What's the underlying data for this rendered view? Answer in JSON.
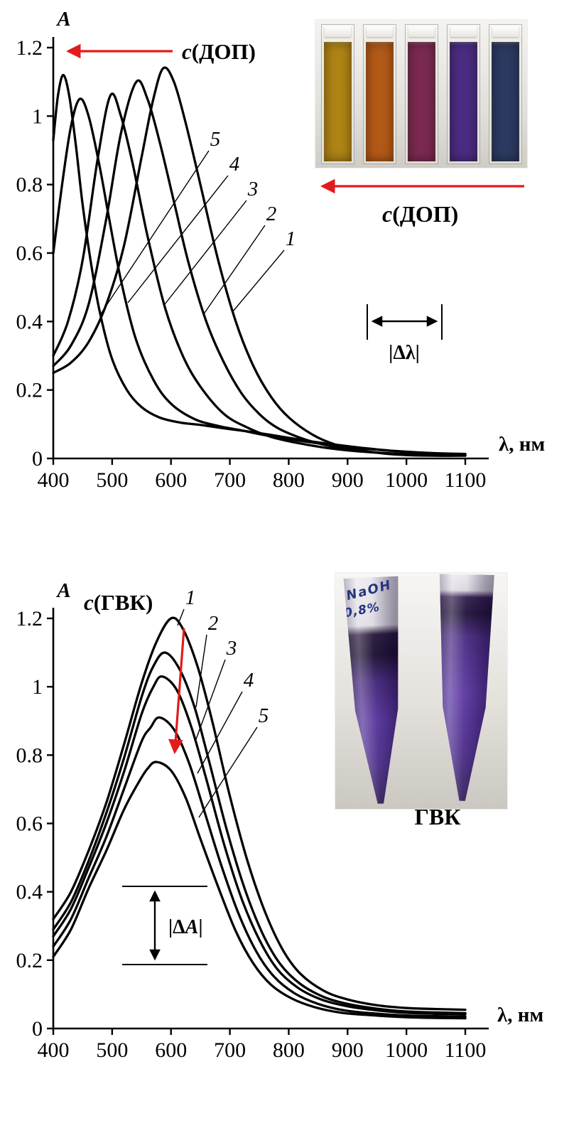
{
  "page": {
    "background": "#ffffff",
    "curve_color": "#000000",
    "arrow_color": "#e21b1b"
  },
  "insets": {
    "cuvettes": {
      "arrow_label": "c(ДОП)",
      "colors": [
        "#b08415",
        "#b45a17",
        "#7c2a50",
        "#4b2c82",
        "#2d3a61"
      ]
    },
    "tubes": {
      "caption": "ГВК",
      "tube_text": [
        "NaOH",
        "0,8%"
      ]
    }
  },
  "chart_data": [
    {
      "type": "line",
      "title": "",
      "xlabel": "λ, нм",
      "ylabel": "A",
      "xlim": [
        400,
        1100
      ],
      "ylim": [
        0,
        1.2
      ],
      "xticks": [
        400,
        500,
        600,
        700,
        800,
        900,
        1000,
        1100
      ],
      "yticks": [
        0,
        0.2,
        0.4,
        0.6,
        0.8,
        1,
        1.2
      ],
      "grid": false,
      "legend_position": "none",
      "annotations": {
        "direction_arrow_label": "c(ДОП)",
        "delta_label": "|Δλ|"
      },
      "series": [
        {
          "name": "1",
          "x": [
            400,
            430,
            460,
            490,
            520,
            550,
            570,
            587,
            605,
            625,
            650,
            680,
            710,
            740,
            770,
            800,
            840,
            880,
            920,
            960,
            1000,
            1050,
            1100
          ],
          "y": [
            0.25,
            0.28,
            0.34,
            0.45,
            0.62,
            0.88,
            1.05,
            1.14,
            1.1,
            0.98,
            0.8,
            0.58,
            0.4,
            0.27,
            0.18,
            0.12,
            0.07,
            0.04,
            0.025,
            0.015,
            0.01,
            0.008,
            0.008
          ]
        },
        {
          "name": "2",
          "x": [
            400,
            430,
            460,
            490,
            515,
            541,
            560,
            580,
            605,
            630,
            660,
            690,
            720,
            750,
            780,
            820,
            860,
            900,
            950,
            1000,
            1050,
            1100
          ],
          "y": [
            0.27,
            0.33,
            0.45,
            0.7,
            0.95,
            1.1,
            1.05,
            0.93,
            0.75,
            0.57,
            0.4,
            0.28,
            0.19,
            0.13,
            0.09,
            0.06,
            0.04,
            0.027,
            0.017,
            0.012,
            0.01,
            0.01
          ]
        },
        {
          "name": "3",
          "x": [
            400,
            425,
            450,
            475,
            497,
            515,
            535,
            560,
            590,
            620,
            650,
            690,
            730,
            770,
            810,
            860,
            910,
            960,
            1010,
            1060,
            1100
          ],
          "y": [
            0.3,
            0.4,
            0.58,
            0.87,
            1.06,
            1.0,
            0.86,
            0.65,
            0.44,
            0.3,
            0.21,
            0.13,
            0.09,
            0.063,
            0.047,
            0.032,
            0.022,
            0.016,
            0.012,
            0.011,
            0.011
          ]
        },
        {
          "name": "4",
          "x": [
            400,
            415,
            430,
            445,
            460,
            478,
            495,
            515,
            540,
            570,
            600,
            640,
            680,
            720,
            760,
            810,
            860,
            910,
            960,
            1010,
            1060,
            1100
          ],
          "y": [
            0.6,
            0.8,
            0.97,
            1.05,
            1.0,
            0.86,
            0.7,
            0.52,
            0.35,
            0.23,
            0.16,
            0.115,
            0.095,
            0.082,
            0.068,
            0.054,
            0.042,
            0.032,
            0.024,
            0.018,
            0.014,
            0.013
          ]
        },
        {
          "name": "5",
          "x": [
            400,
            408,
            417,
            427,
            438,
            450,
            465,
            480,
            500,
            525,
            550,
            580,
            615,
            650,
            690,
            730,
            780,
            830,
            880,
            930,
            980,
            1040,
            1100
          ],
          "y": [
            0.93,
            1.06,
            1.12,
            1.06,
            0.92,
            0.74,
            0.56,
            0.42,
            0.29,
            0.2,
            0.15,
            0.12,
            0.105,
            0.098,
            0.088,
            0.079,
            0.066,
            0.052,
            0.04,
            0.03,
            0.022,
            0.016,
            0.013
          ]
        }
      ]
    },
    {
      "type": "line",
      "title": "",
      "xlabel": "λ, нм",
      "ylabel": "A",
      "xlim": [
        400,
        1100
      ],
      "ylim": [
        0,
        1.2
      ],
      "xticks": [
        400,
        500,
        600,
        700,
        800,
        900,
        1000,
        1100
      ],
      "yticks": [
        0,
        0.2,
        0.4,
        0.6,
        0.8,
        1,
        1.2
      ],
      "grid": false,
      "legend_position": "none",
      "annotations": {
        "direction_arrow_label": "c(ГВК)",
        "delta_label": "|ΔA|"
      },
      "series": [
        {
          "name": "1",
          "x": [
            400,
            430,
            460,
            490,
            520,
            550,
            575,
            600,
            620,
            645,
            670,
            700,
            730,
            760,
            790,
            820,
            860,
            900,
            950,
            1000,
            1050,
            1100
          ],
          "y": [
            0.32,
            0.4,
            0.52,
            0.66,
            0.83,
            1.01,
            1.13,
            1.2,
            1.17,
            1.06,
            0.9,
            0.68,
            0.49,
            0.34,
            0.23,
            0.16,
            0.11,
            0.085,
            0.068,
            0.06,
            0.057,
            0.055
          ]
        },
        {
          "name": "2",
          "x": [
            400,
            430,
            460,
            490,
            520,
            550,
            570,
            590,
            615,
            640,
            665,
            695,
            725,
            755,
            785,
            820,
            860,
            900,
            950,
            1000,
            1050,
            1100
          ],
          "y": [
            0.29,
            0.37,
            0.49,
            0.63,
            0.79,
            0.97,
            1.06,
            1.1,
            1.05,
            0.94,
            0.78,
            0.58,
            0.41,
            0.28,
            0.19,
            0.13,
            0.092,
            0.072,
            0.058,
            0.05,
            0.047,
            0.045
          ]
        },
        {
          "name": "3",
          "x": [
            400,
            430,
            460,
            490,
            520,
            550,
            570,
            585,
            610,
            635,
            660,
            690,
            720,
            750,
            780,
            815,
            855,
            900,
            950,
            1000,
            1050,
            1100
          ],
          "y": [
            0.27,
            0.35,
            0.47,
            0.6,
            0.75,
            0.92,
            1.0,
            1.03,
            0.99,
            0.88,
            0.73,
            0.54,
            0.38,
            0.26,
            0.175,
            0.12,
            0.085,
            0.065,
            0.053,
            0.046,
            0.043,
            0.042
          ]
        },
        {
          "name": "4",
          "x": [
            400,
            430,
            460,
            490,
            520,
            550,
            565,
            580,
            605,
            630,
            655,
            685,
            715,
            745,
            775,
            810,
            850,
            895,
            945,
            1000,
            1050,
            1100
          ],
          "y": [
            0.24,
            0.32,
            0.44,
            0.56,
            0.7,
            0.84,
            0.88,
            0.91,
            0.875,
            0.78,
            0.645,
            0.48,
            0.335,
            0.225,
            0.152,
            0.103,
            0.072,
            0.053,
            0.044,
            0.038,
            0.036,
            0.035
          ]
        },
        {
          "name": "5",
          "x": [
            400,
            430,
            460,
            490,
            520,
            545,
            560,
            575,
            600,
            625,
            650,
            680,
            710,
            740,
            770,
            805,
            845,
            890,
            940,
            1000,
            1050,
            1100
          ],
          "y": [
            0.21,
            0.29,
            0.41,
            0.52,
            0.64,
            0.72,
            0.76,
            0.78,
            0.755,
            0.675,
            0.555,
            0.415,
            0.285,
            0.19,
            0.128,
            0.088,
            0.062,
            0.046,
            0.039,
            0.033,
            0.031,
            0.03
          ]
        }
      ]
    }
  ]
}
